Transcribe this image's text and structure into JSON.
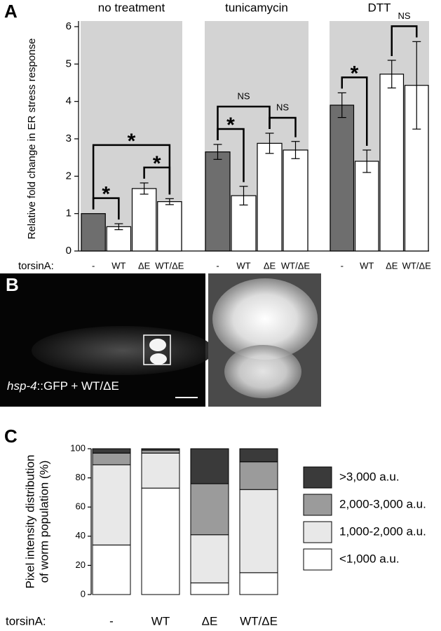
{
  "chart_data": [
    {
      "type": "bar",
      "panel": "A",
      "group_titles": [
        "no treatment",
        "tunicamycin",
        "DTT"
      ],
      "categories": [
        "-",
        "WT",
        "ΔE",
        "WT/ΔE",
        "-",
        "WT",
        "ΔE",
        "WT/ΔE",
        "-",
        "WT",
        "ΔE",
        "WT/ΔE"
      ],
      "values": [
        1.0,
        0.65,
        1.67,
        1.32,
        2.65,
        1.48,
        2.88,
        2.7,
        3.9,
        2.4,
        4.73,
        4.43
      ],
      "errors": [
        0,
        0.08,
        0.15,
        0.08,
        0.2,
        0.25,
        0.27,
        0.23,
        0.33,
        0.3,
        0.37,
        1.17
      ],
      "colors": [
        "#6e6e6e",
        "#ffffff",
        "#ffffff",
        "#ffffff",
        "#6e6e6e",
        "#ffffff",
        "#ffffff",
        "#ffffff",
        "#6e6e6e",
        "#ffffff",
        "#ffffff",
        "#ffffff"
      ],
      "background": "#d3d3d3",
      "y_label": "Relative fold change in ER stress response",
      "x_label": "torsinA:",
      "ylim": [
        0,
        6
      ],
      "yticks": [
        0,
        1,
        2,
        3,
        4,
        5,
        6
      ],
      "brackets": [
        {
          "label": "*",
          "between": [
            0,
            1
          ]
        },
        {
          "label": "*",
          "between": [
            2,
            3
          ]
        },
        {
          "label": "*",
          "between": [
            0,
            3
          ]
        },
        {
          "label": "*",
          "between": [
            4,
            5
          ]
        },
        {
          "label": "NS",
          "between": [
            6,
            7
          ]
        },
        {
          "label": "NS",
          "between": [
            4,
            6
          ]
        },
        {
          "label": "*",
          "between": [
            8,
            9
          ]
        },
        {
          "label": "NS",
          "between": [
            10,
            11
          ]
        }
      ]
    },
    {
      "type": "stacked_bar",
      "panel": "C",
      "categories": [
        "-",
        "WT",
        "ΔE",
        "WT/ΔE"
      ],
      "y_label": [
        "Pixel intensity distribution",
        "of worm population (%)"
      ],
      "x_label": "torsinA:",
      "ylim": [
        0,
        100
      ],
      "yticks": [
        0,
        20,
        40,
        60,
        80,
        100
      ],
      "series": [
        {
          "name": "<1,000 a.u.",
          "color": "#ffffff",
          "values": [
            34,
            73,
            8,
            15
          ]
        },
        {
          "name": "1,000-2,000 a.u.",
          "color": "#e8e8e8",
          "values": [
            55,
            24,
            33,
            57
          ]
        },
        {
          "name": "2,000-3,000 a.u.",
          "color": "#9b9b9b",
          "values": [
            8,
            2,
            35,
            19
          ]
        },
        {
          "name": ">3,000 a.u.",
          "color": "#3a3a3a",
          "values": [
            3,
            1,
            24,
            9
          ]
        }
      ]
    }
  ],
  "panel_b": {
    "label": "B",
    "caption_italic": "hsp-4",
    "caption": "::GFP + WT/ΔE"
  }
}
